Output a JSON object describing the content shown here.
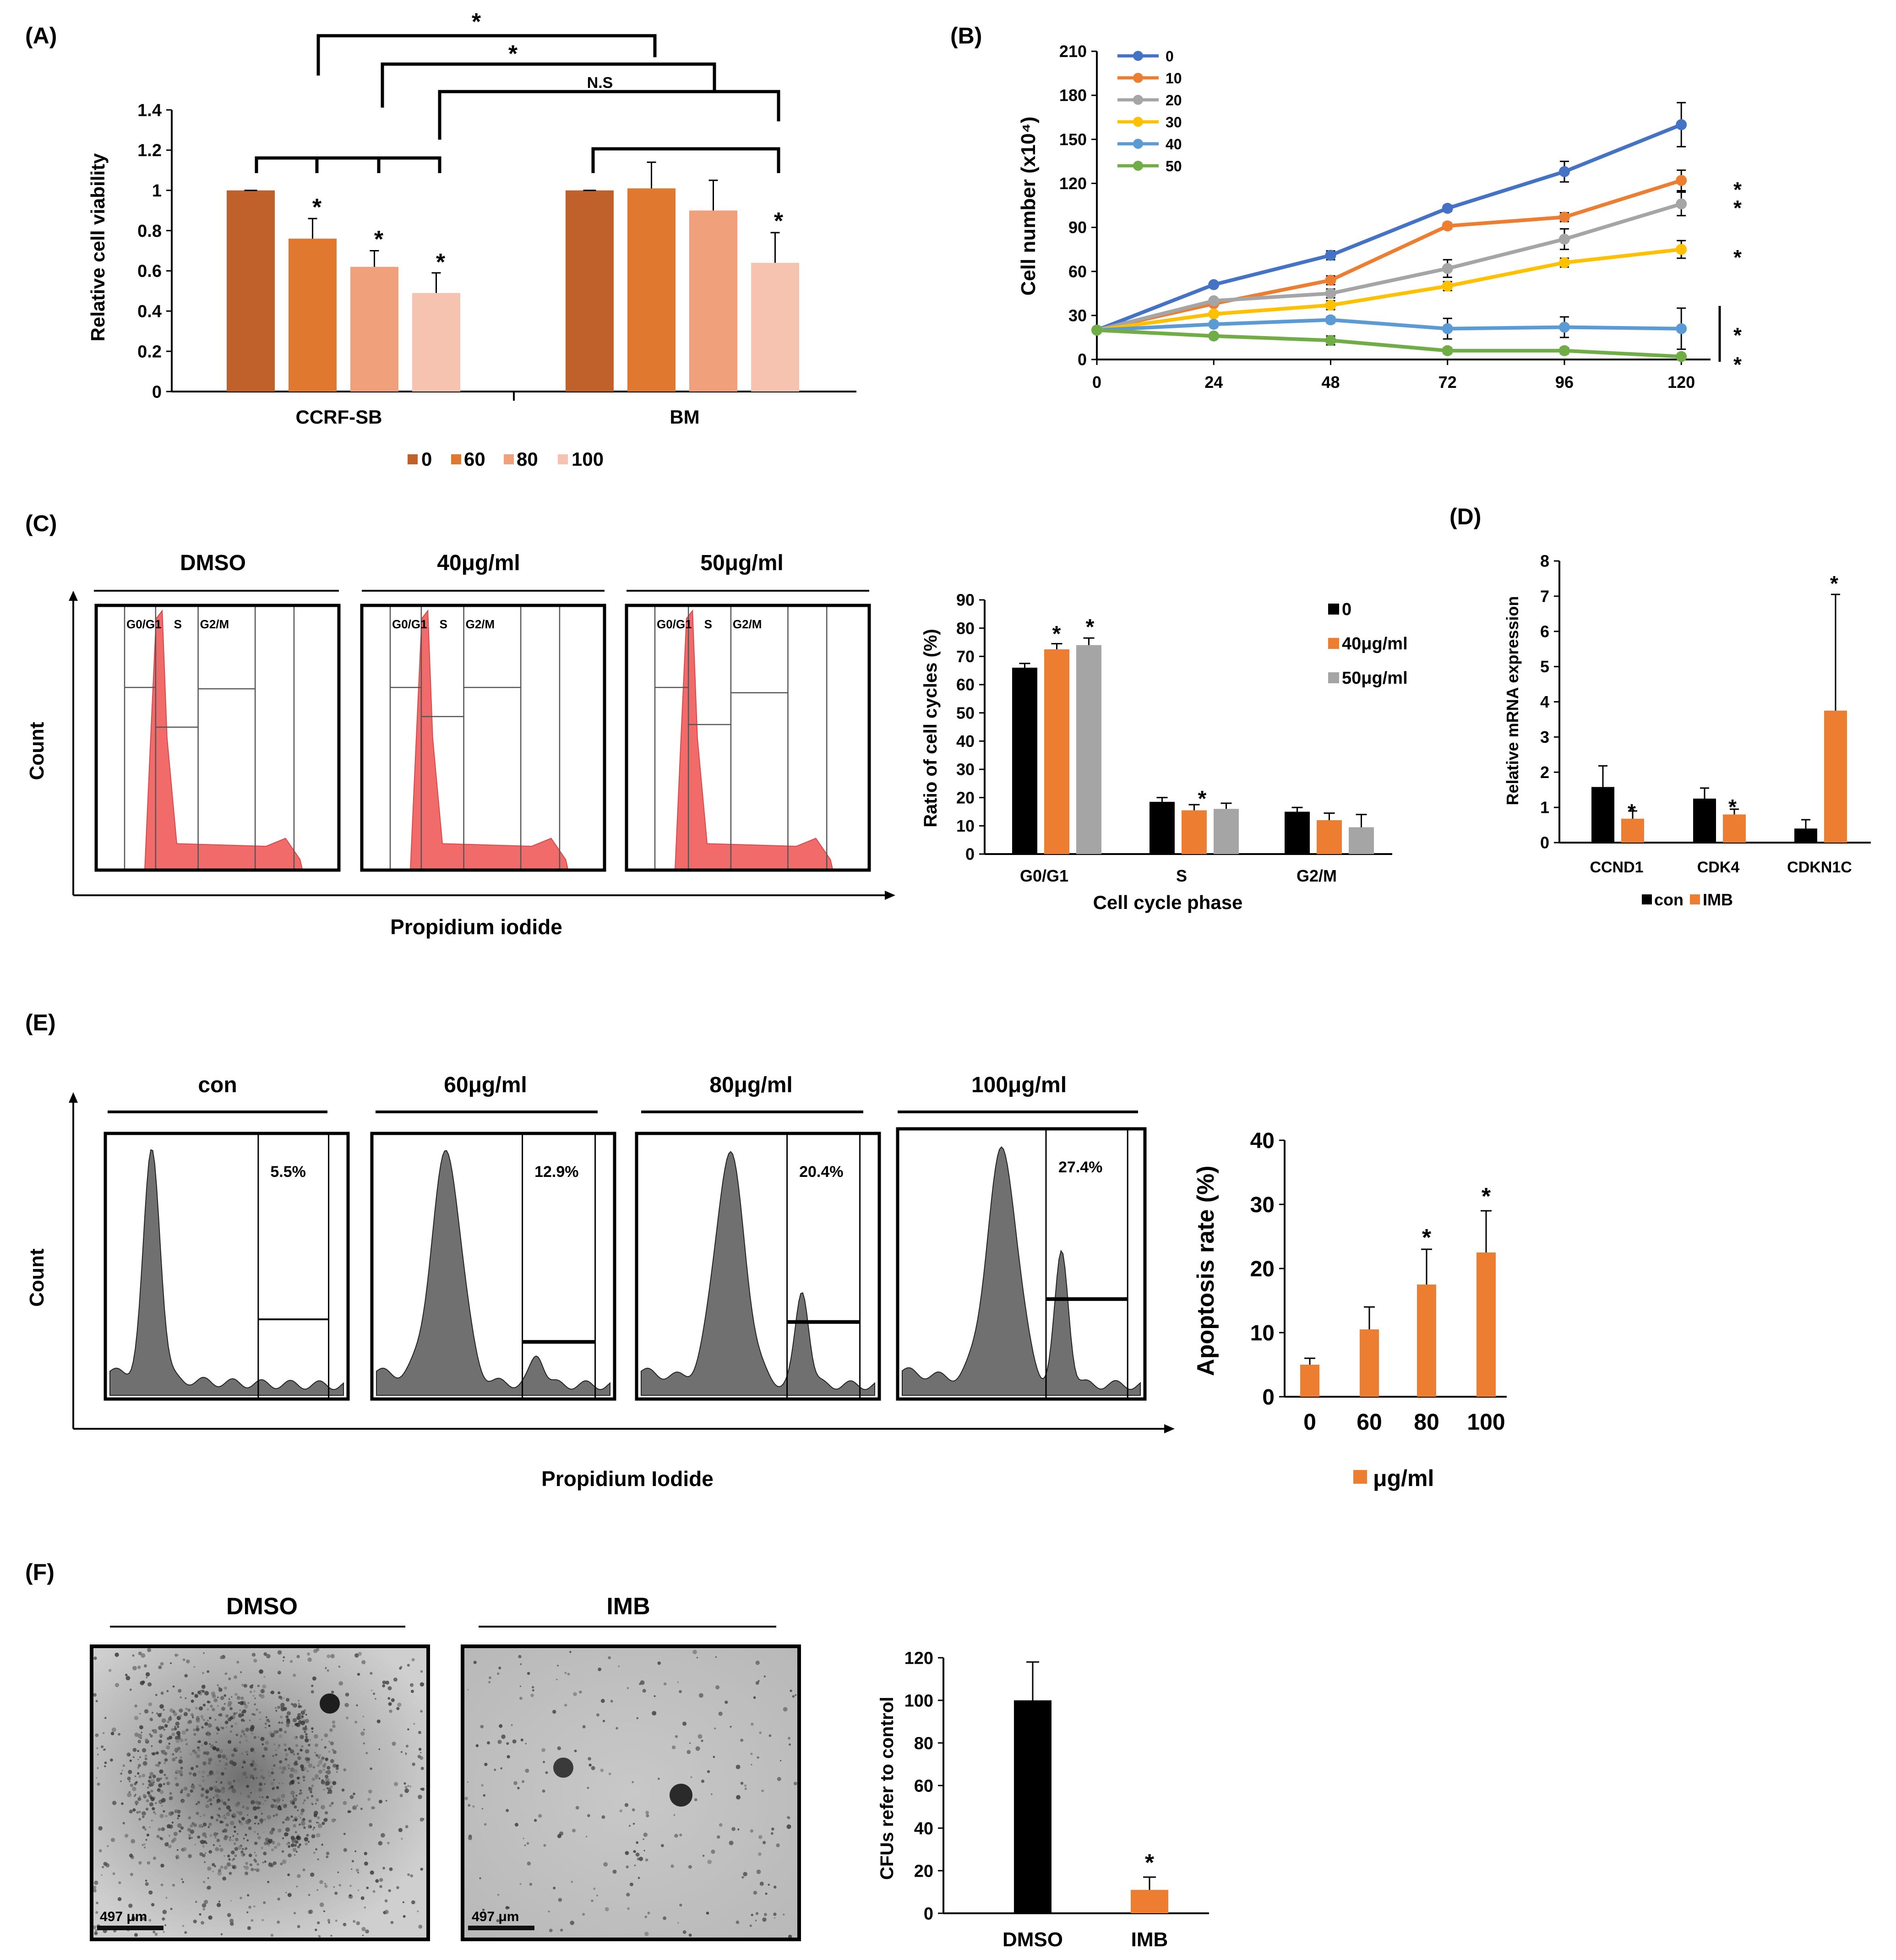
{
  "colors": {
    "black": "#000000",
    "orange": "#ED7D31",
    "gray": "#A5A5A5",
    "blue": "#4472C4",
    "yellow": "#FFC000",
    "lightblue": "#5B9BD5",
    "green": "#70AD47",
    "brown": "#C0612B",
    "orange2": "#E07830",
    "peach": "#F0A07A",
    "pale": "#F5C3B0",
    "histRed": "#F26B6B",
    "histGray": "#707070"
  },
  "chart_data": [
    {
      "panel": "(A)",
      "type": "bar",
      "ylabel": "Relative cell viability",
      "ylim": [
        0,
        1.4
      ],
      "yticks": [
        "0",
        "0.2",
        "0.4",
        "0.6",
        "0.8",
        "1",
        "1.2",
        "1.4"
      ],
      "categories": [
        "CCRF-SB",
        "BM"
      ],
      "legend": [
        "0",
        "60",
        "80",
        "100"
      ],
      "series": [
        {
          "name": "0",
          "values": [
            1.0,
            1.0
          ],
          "errors": [
            0.0,
            0.0
          ]
        },
        {
          "name": "60",
          "values": [
            0.76,
            1.01
          ],
          "errors": [
            0.1,
            0.13
          ]
        },
        {
          "name": "80",
          "values": [
            0.62,
            0.9
          ],
          "errors": [
            0.08,
            0.15
          ]
        },
        {
          "name": "100",
          "values": [
            0.49,
            0.64
          ],
          "errors": [
            0.1,
            0.15
          ]
        }
      ],
      "annotations": [
        "*",
        "*",
        "N.S",
        "*",
        "*",
        "*",
        "*"
      ]
    },
    {
      "panel": "(B)",
      "type": "line",
      "ylabel": "Cell number (x10⁴)",
      "ylim": [
        0,
        210
      ],
      "yticks": [
        "0",
        "30",
        "60",
        "90",
        "120",
        "150",
        "180",
        "210"
      ],
      "x": [
        0,
        24,
        48,
        72,
        96,
        120
      ],
      "xticks": [
        "0",
        "24",
        "48",
        "72",
        "96",
        "120"
      ],
      "series": [
        {
          "name": "0",
          "values": [
            20,
            51,
            71,
            103,
            128,
            160
          ],
          "errors": [
            0,
            0,
            3,
            2,
            7,
            15
          ]
        },
        {
          "name": "10",
          "values": [
            20,
            38,
            54,
            91,
            97,
            122
          ],
          "errors": [
            0,
            0,
            3,
            2,
            3,
            7
          ]
        },
        {
          "name": "20",
          "values": [
            20,
            40,
            45,
            62,
            82,
            106
          ],
          "errors": [
            0,
            0,
            3,
            6,
            7,
            8
          ]
        },
        {
          "name": "30",
          "values": [
            20,
            31,
            37,
            50,
            66,
            75
          ],
          "errors": [
            0,
            0,
            3,
            3,
            3,
            6
          ]
        },
        {
          "name": "40",
          "values": [
            20,
            24,
            27,
            21,
            22,
            21
          ],
          "errors": [
            0,
            0,
            2,
            7,
            7,
            14
          ]
        },
        {
          "name": "50",
          "values": [
            20,
            16,
            13,
            6,
            6,
            2
          ],
          "errors": [
            0,
            0,
            3,
            2,
            2,
            1
          ]
        }
      ],
      "annotations": [
        "*",
        "*",
        "*",
        "*",
        "*"
      ]
    },
    {
      "panel": "(C)",
      "type": "bar",
      "xlabel": "Cell cycle phase",
      "ylabel": "Ratio of cell cycles (%)",
      "ylim": [
        0,
        90
      ],
      "yticks": [
        "0",
        "10",
        "20",
        "30",
        "40",
        "50",
        "60",
        "70",
        "80",
        "90"
      ],
      "categories": [
        "G0/G1",
        "S",
        "G2/M"
      ],
      "series": [
        {
          "name": "0",
          "values": [
            66,
            18.5,
            15
          ],
          "errors": [
            1.5,
            1.5,
            1.5
          ]
        },
        {
          "name": "40μg/ml",
          "values": [
            72.5,
            15.5,
            12
          ],
          "errors": [
            2,
            2,
            2.5
          ]
        },
        {
          "name": "50μg/ml",
          "values": [
            74,
            16,
            9.5
          ],
          "errors": [
            2.5,
            2,
            4.5
          ]
        }
      ],
      "annotations": [
        "*",
        "*",
        "*"
      ]
    },
    {
      "panel": "(D)",
      "type": "bar",
      "ylabel": "Relative  mRNA  expression",
      "ylim": [
        0,
        8
      ],
      "yticks": [
        "0",
        "1",
        "2",
        "3",
        "4",
        "5",
        "6",
        "7",
        "8"
      ],
      "categories": [
        "CCND1",
        "CDK4",
        "CDKN1C"
      ],
      "series": [
        {
          "name": "con",
          "values": [
            1.58,
            1.25,
            0.4
          ],
          "errors": [
            0.6,
            0.3,
            0.25
          ]
        },
        {
          "name": "IMB",
          "values": [
            0.68,
            0.8,
            3.75
          ],
          "errors": [
            0.22,
            0.15,
            3.3
          ]
        }
      ],
      "annotations": [
        "*",
        "*",
        "*"
      ]
    },
    {
      "panel": "(E)",
      "type": "bar",
      "ylabel": "Apoptosis rate (%)",
      "ylim": [
        0,
        40
      ],
      "yticks": [
        "0",
        "10",
        "20",
        "30",
        "40"
      ],
      "categories": [
        "0",
        "60",
        "80",
        "100"
      ],
      "legend": "μg/ml",
      "values": [
        5,
        10.5,
        17.5,
        22.5
      ],
      "errors": [
        1,
        3.5,
        5.5,
        6.5
      ],
      "annotations": [
        "*",
        "*"
      ]
    },
    {
      "panel": "(F)",
      "type": "bar",
      "ylabel": "CFUs refer to control",
      "ylim": [
        0,
        120
      ],
      "yticks": [
        "0",
        "20",
        "40",
        "60",
        "80",
        "100",
        "120"
      ],
      "categories": [
        "DMSO",
        "IMB"
      ],
      "values": [
        100,
        11
      ],
      "errors": [
        18,
        6
      ],
      "annotations": [
        "*"
      ]
    }
  ],
  "panelC": {
    "hist_titles": [
      "DMSO",
      "40μg/ml",
      "50μg/ml"
    ],
    "gate_labels": [
      "G0/G1",
      "S",
      "G2/M"
    ],
    "ylabel": "Count",
    "xlabel": "Propidium iodide"
  },
  "panelE": {
    "hist_titles": [
      "con",
      "60μg/ml",
      "80μg/ml",
      "100μg/ml"
    ],
    "percents": [
      "5.5%",
      "12.9%",
      "20.4%",
      "27.4%"
    ],
    "ylabel": "Count",
    "xlabel": "Propidium Iodide"
  },
  "panelF": {
    "image_titles": [
      "DMSO",
      "IMB"
    ],
    "scale_bar": "497 μm"
  }
}
